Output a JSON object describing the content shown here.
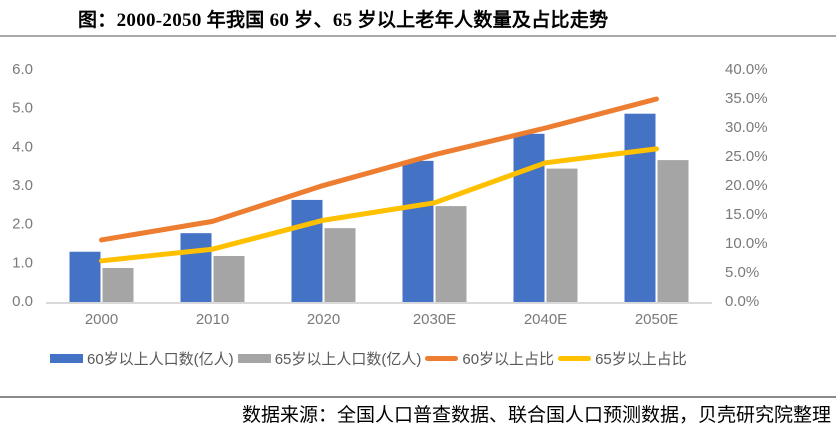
{
  "title": "图：2000-2050 年我国 60 岁、65 岁以上老年人数量及占比走势",
  "source": "数据来源：全国人口普查数据、联合国人口预测数据，贝壳研究院整理",
  "colors": {
    "bar_60plus": "#4472C4",
    "bar_65plus": "#A5A5A5",
    "line_60plus_ratio": "#ED7D31",
    "line_65plus_ratio": "#FFC000",
    "axis_text": "#7a7a7a",
    "axis_line": "#D9D9D9",
    "legend_text": "#595959"
  },
  "chart_data": {
    "type": "bar",
    "subtype": "combo-bar-line-dual-axis",
    "title": "图：2000-2050 年我国 60 岁、65 岁以上老年人数量及占比走势",
    "categories": [
      "2000",
      "2010",
      "2020",
      "2030E",
      "2040E",
      "2050E"
    ],
    "series": [
      {
        "name": "60岁以上人口数(亿人)",
        "type": "bar",
        "axis": "left",
        "color": "#4472C4",
        "values": [
          1.3,
          1.78,
          2.64,
          3.65,
          4.35,
          4.87
        ]
      },
      {
        "name": "65岁以上人口数(亿人)",
        "type": "bar",
        "axis": "left",
        "color": "#A5A5A5",
        "values": [
          0.88,
          1.19,
          1.91,
          2.48,
          3.45,
          3.67
        ]
      },
      {
        "name": "60岁以上占比",
        "type": "line",
        "axis": "right",
        "color": "#ED7D31",
        "values": [
          10.7,
          13.9,
          20.1,
          25.4,
          30.0,
          35.0
        ]
      },
      {
        "name": "65岁以上占比",
        "type": "line",
        "axis": "right",
        "color": "#FFC000",
        "values": [
          7.1,
          9.1,
          14.1,
          17.1,
          24.0,
          26.4
        ]
      }
    ],
    "left_axis": {
      "min": 0,
      "max": 6,
      "step": 1,
      "ticks": [
        "0.0",
        "1.0",
        "2.0",
        "3.0",
        "4.0",
        "5.0",
        "6.0"
      ]
    },
    "right_axis": {
      "min": 0,
      "max": 40,
      "step": 5,
      "ticks": [
        "0.0%",
        "5.0%",
        "10.0%",
        "15.0%",
        "20.0%",
        "25.0%",
        "30.0%",
        "35.0%",
        "40.0%"
      ]
    },
    "legend_position": "bottom",
    "grid": false
  }
}
